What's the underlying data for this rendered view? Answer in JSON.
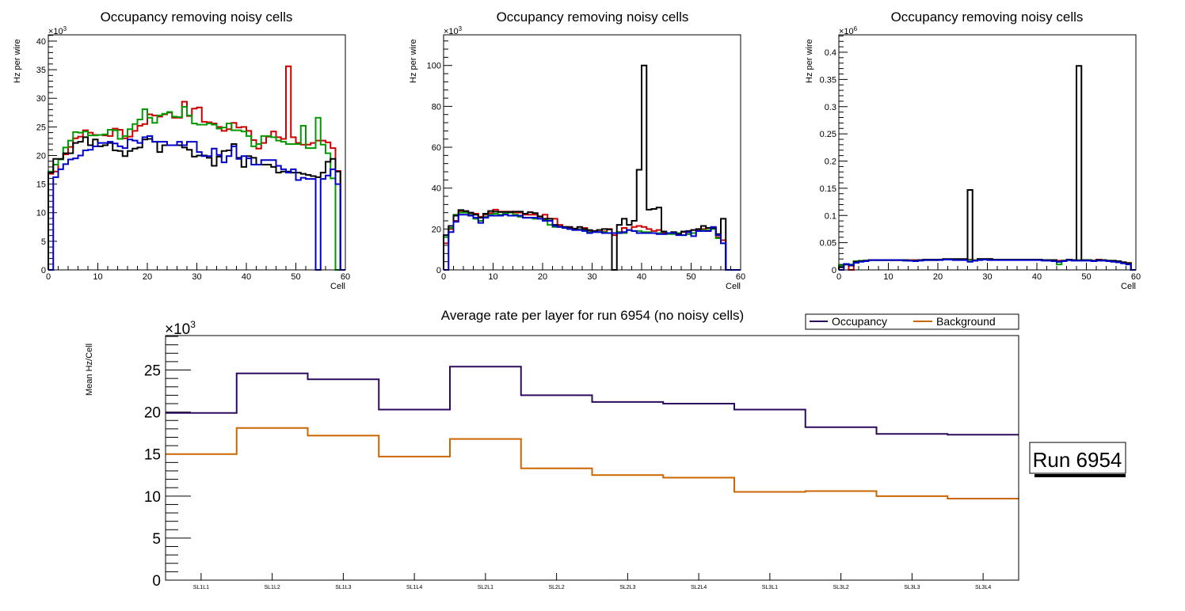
{
  "chart_data": [
    {
      "type": "line",
      "subtype": "step-histogram",
      "title": "Occupancy removing noisy cells",
      "xlabel": "Cell",
      "ylabel": "Hz per wire",
      "y_multiplier_label": "×10",
      "y_multiplier_exp": "3",
      "xlim": [
        0,
        60
      ],
      "ylim": [
        0,
        41.1
      ],
      "x_ticks": [
        0,
        10,
        20,
        30,
        40,
        50,
        60
      ],
      "y_ticks": [
        0,
        5,
        10,
        15,
        20,
        25,
        30,
        35,
        40
      ],
      "y_tick_labels": [
        "0",
        "5",
        "10",
        "15",
        "20",
        "25",
        "30",
        "35",
        "40"
      ],
      "series": [
        {
          "name": "black",
          "color": "#000000",
          "values": [
            17.0,
            19.4,
            19.4,
            20.4,
            20.4,
            22.2,
            22.4,
            23.2,
            21.8,
            22.8,
            21.6,
            21.8,
            22.2,
            20.9,
            20.8,
            19.9,
            20.8,
            21.2,
            21.4,
            22.8,
            22.9,
            22.4,
            20.6,
            21.8,
            21.8,
            21.8,
            21.8,
            21.4,
            21.0,
            19.8,
            20.0,
            20.0,
            19.6,
            18.2,
            19.8,
            20.8,
            20.9,
            22.0,
            19.6,
            18.0,
            19.9,
            19.6,
            18.4,
            18.4,
            18.4,
            18.0,
            17.0,
            17.2,
            17.2,
            17.0,
            17.0,
            16.8,
            16.6,
            16.4,
            16.2,
            17.0,
            18.9,
            19.4,
            17.2,
            0
          ]
        },
        {
          "name": "red",
          "color": "#cc0000",
          "values": [
            16.8,
            17.2,
            19.3,
            20.2,
            21.5,
            23.0,
            23.3,
            24.4,
            24.0,
            23.6,
            23.6,
            23.5,
            23.4,
            24.7,
            24.5,
            23.0,
            23.3,
            24.3,
            25.2,
            25.5,
            27.2,
            27.0,
            26.8,
            27.2,
            27.5,
            26.6,
            26.6,
            29.4,
            26.9,
            28.2,
            28.4,
            25.9,
            25.8,
            25.6,
            25.0,
            24.3,
            24.6,
            25.7,
            24.9,
            25.0,
            24.3,
            22.7,
            21.2,
            22.2,
            23.3,
            24.2,
            23.2,
            22.9,
            35.6,
            23.2,
            22.2,
            21.9,
            21.9,
            22.2,
            22.6,
            22.6,
            22.3,
            21.3,
            17.3,
            0
          ]
        },
        {
          "name": "green",
          "color": "#009900",
          "values": [
            17.2,
            18.4,
            19.3,
            21.4,
            22.6,
            24.1,
            24.0,
            24.2,
            23.5,
            23.5,
            23.6,
            23.7,
            24.5,
            24.4,
            22.9,
            23.4,
            24.6,
            25.5,
            26.3,
            28.1,
            26.6,
            25.7,
            27.0,
            27.3,
            27.6,
            26.8,
            26.7,
            28.5,
            27.0,
            25.6,
            25.4,
            25.4,
            25.6,
            25.4,
            24.7,
            24.9,
            25.6,
            24.4,
            24.4,
            24.2,
            23.4,
            21.6,
            22.0,
            23.4,
            23.4,
            23.2,
            22.6,
            22.4,
            22.0,
            22.0,
            22.0,
            25.2,
            21.3,
            21.3,
            26.6,
            21.9,
            20.4,
            16.0,
            0,
            0
          ]
        },
        {
          "name": "blue",
          "color": "#0000cc",
          "values": [
            0,
            16.2,
            17.6,
            18.5,
            19.3,
            19.5,
            20.0,
            20.9,
            21.0,
            21.6,
            22.2,
            22.2,
            22.4,
            22.1,
            21.6,
            21.3,
            22.8,
            22.6,
            22.2,
            23.2,
            23.4,
            22.4,
            22.4,
            22.4,
            21.8,
            21.8,
            22.4,
            21.8,
            22.4,
            22.4,
            20.6,
            19.9,
            19.9,
            21.2,
            20.1,
            18.8,
            19.9,
            21.6,
            19.4,
            19.9,
            19.5,
            18.4,
            18.4,
            19.2,
            19.2,
            19.2,
            18.2,
            17.6,
            17.0,
            17.6,
            15.7,
            16.1,
            15.9,
            15.9,
            0,
            15.9,
            16.5,
            17.6,
            15.0,
            0
          ]
        }
      ]
    },
    {
      "type": "line",
      "subtype": "step-histogram",
      "title": "Occupancy removing noisy cells",
      "xlabel": "Cell",
      "ylabel": "Hz per wire",
      "y_multiplier_label": "×10",
      "y_multiplier_exp": "3",
      "xlim": [
        0,
        60
      ],
      "ylim": [
        0,
        115
      ],
      "x_ticks": [
        0,
        10,
        20,
        30,
        40,
        50,
        60
      ],
      "y_ticks": [
        0,
        20,
        40,
        60,
        80,
        100
      ],
      "y_tick_labels": [
        "0",
        "20",
        "40",
        "60",
        "80",
        "100"
      ],
      "series": [
        {
          "name": "black",
          "color": "#000000",
          "values": [
            17.0,
            21.5,
            26.5,
            29.3,
            28.8,
            28.0,
            27.0,
            25.5,
            27.5,
            28.8,
            28.5,
            28.3,
            28.3,
            28.3,
            28.5,
            28.5,
            27.5,
            28.2,
            27.8,
            26.2,
            25.0,
            25.0,
            22.0,
            21.2,
            21.0,
            21.0,
            20.2,
            21.0,
            20.0,
            19.5,
            19.0,
            19.5,
            20.0,
            19.8,
            0,
            22.0,
            25.0,
            22.0,
            24.0,
            49.0,
            100.0,
            29.5,
            29.8,
            30.5,
            18.8,
            18.0,
            18.5,
            17.5,
            18.8,
            19.0,
            19.5,
            20.0,
            21.5,
            20.5,
            20.5,
            17.5,
            25.0,
            0,
            0,
            0
          ]
        },
        {
          "name": "red",
          "color": "#cc0000",
          "values": [
            13.0,
            20.0,
            24.0,
            28.8,
            28.5,
            27.8,
            27.5,
            26.0,
            27.0,
            27.8,
            29.5,
            28.5,
            28.5,
            28.5,
            28.0,
            28.0,
            27.0,
            27.0,
            27.0,
            26.0,
            27.0,
            25.0,
            25.0,
            22.0,
            21.0,
            20.5,
            20.2,
            20.0,
            20.5,
            19.0,
            19.0,
            19.5,
            18.8,
            20.0,
            17.0,
            18.5,
            20.5,
            19.5,
            21.0,
            21.5,
            21.0,
            20.0,
            19.0,
            19.5,
            18.0,
            18.0,
            18.0,
            17.5,
            18.5,
            17.5,
            19.5,
            19.5,
            20.0,
            19.0,
            20.5,
            16.0,
            14.5,
            0,
            0,
            0
          ]
        },
        {
          "name": "green",
          "color": "#009900",
          "values": [
            16.0,
            20.5,
            27.0,
            28.0,
            28.0,
            27.0,
            25.0,
            24.0,
            26.0,
            27.0,
            27.5,
            27.0,
            27.5,
            28.0,
            27.0,
            26.0,
            25.5,
            25.5,
            25.0,
            25.0,
            24.5,
            22.0,
            21.0,
            21.0,
            21.0,
            20.0,
            19.5,
            19.8,
            19.5,
            18.5,
            18.5,
            18.5,
            18.5,
            18.0,
            18.0,
            18.5,
            18.0,
            19.5,
            19.0,
            19.0,
            18.5,
            18.5,
            18.0,
            18.0,
            17.5,
            17.5,
            17.5,
            18.0,
            17.0,
            17.5,
            18.0,
            19.0,
            19.5,
            19.5,
            20.0,
            15.5,
            13.0,
            0,
            0,
            0
          ]
        },
        {
          "name": "blue",
          "color": "#0000cc",
          "values": [
            0,
            18.5,
            23.5,
            27.0,
            27.0,
            26.5,
            25.5,
            23.0,
            25.5,
            26.5,
            26.5,
            26.5,
            27.0,
            26.5,
            26.5,
            26.5,
            25.5,
            25.5,
            25.5,
            25.0,
            24.0,
            24.0,
            21.5,
            21.0,
            20.5,
            20.0,
            19.5,
            19.5,
            19.0,
            18.0,
            18.5,
            18.5,
            18.0,
            18.0,
            18.0,
            18.0,
            18.5,
            19.5,
            19.0,
            18.0,
            18.0,
            18.0,
            18.0,
            17.5,
            17.5,
            18.0,
            18.0,
            17.0,
            17.0,
            18.5,
            16.5,
            19.0,
            19.0,
            19.0,
            21.0,
            17.0,
            13.0,
            0,
            0,
            0
          ]
        }
      ]
    },
    {
      "type": "line",
      "subtype": "step-histogram",
      "title": "Occupancy removing noisy cells",
      "xlabel": "Cell",
      "ylabel": "Hz per wire",
      "y_multiplier_label": "×10",
      "y_multiplier_exp": "6",
      "xlim": [
        0,
        60
      ],
      "ylim": [
        0,
        0.432
      ],
      "x_ticks": [
        0,
        10,
        20,
        30,
        40,
        50,
        60
      ],
      "y_ticks": [
        0,
        0.05,
        0.1,
        0.15,
        0.2,
        0.25,
        0.3,
        0.35,
        0.4
      ],
      "y_tick_labels": [
        "0",
        "0.05",
        "0.1",
        "0.15",
        "0.2",
        "0.25",
        "0.3",
        "0.35",
        "0.4"
      ],
      "series": [
        {
          "name": "black",
          "color": "#000000",
          "values": [
            0.005,
            0.01,
            0.008,
            0.015,
            0.016,
            0.017,
            0.018,
            0.018,
            0.018,
            0.018,
            0.018,
            0.018,
            0.018,
            0.018,
            0.017,
            0.017,
            0.018,
            0.019,
            0.019,
            0.019,
            0.019,
            0.02,
            0.02,
            0.02,
            0.02,
            0.02,
            0.147,
            0.017,
            0.02,
            0.02,
            0.02,
            0.019,
            0.019,
            0.019,
            0.019,
            0.019,
            0.019,
            0.019,
            0.019,
            0.019,
            0.019,
            0.018,
            0.018,
            0.018,
            0.015,
            0.017,
            0.019,
            0.018,
            0.375,
            0.018,
            0.018,
            0.017,
            0.018,
            0.018,
            0.017,
            0.017,
            0.016,
            0.014,
            0.012,
            0
          ]
        },
        {
          "name": "red",
          "color": "#cc0000",
          "values": [
            0.005,
            0.01,
            0,
            0.016,
            0.016,
            0.017,
            0.018,
            0.018,
            0.018,
            0.018,
            0.018,
            0.018,
            0.018,
            0.018,
            0.018,
            0.018,
            0.018,
            0.018,
            0.018,
            0.018,
            0.019,
            0.019,
            0.019,
            0.019,
            0.019,
            0.019,
            0.019,
            0.018,
            0.019,
            0.019,
            0.02,
            0.019,
            0.019,
            0.019,
            0.019,
            0.019,
            0.019,
            0.019,
            0.019,
            0.019,
            0.019,
            0.018,
            0.018,
            0.018,
            0.017,
            0.017,
            0.018,
            0.018,
            0.018,
            0.018,
            0.018,
            0.017,
            0.019,
            0.018,
            0.017,
            0.016,
            0.015,
            0.014,
            0.013,
            0
          ]
        },
        {
          "name": "green",
          "color": "#009900",
          "values": [
            0.008,
            0.01,
            0.01,
            0.016,
            0.017,
            0.017,
            0.018,
            0.018,
            0.018,
            0.018,
            0.018,
            0.018,
            0.018,
            0.018,
            0.017,
            0.017,
            0.018,
            0.018,
            0.018,
            0.018,
            0.019,
            0.019,
            0.019,
            0.019,
            0.019,
            0.019,
            0.018,
            0.018,
            0.02,
            0.02,
            0.019,
            0.019,
            0.019,
            0.019,
            0.019,
            0.019,
            0.019,
            0.019,
            0.019,
            0.019,
            0.019,
            0.018,
            0.018,
            0.017,
            0.01,
            0.017,
            0.018,
            0.018,
            0.018,
            0.018,
            0.018,
            0.017,
            0.018,
            0.018,
            0.017,
            0.016,
            0.014,
            0.013,
            0.012,
            0
          ]
        },
        {
          "name": "blue",
          "color": "#0000cc",
          "values": [
            0,
            0.011,
            0.009,
            0.013,
            0.015,
            0.016,
            0.018,
            0.018,
            0.018,
            0.018,
            0.018,
            0.018,
            0.018,
            0.017,
            0.017,
            0.016,
            0.017,
            0.018,
            0.018,
            0.018,
            0.018,
            0.019,
            0.019,
            0.018,
            0.018,
            0.018,
            0.015,
            0.017,
            0.018,
            0.019,
            0.018,
            0.018,
            0.018,
            0.018,
            0.018,
            0.018,
            0.018,
            0.018,
            0.018,
            0.018,
            0.018,
            0.017,
            0.017,
            0.016,
            0.015,
            0.016,
            0.018,
            0.017,
            0.017,
            0.017,
            0.017,
            0.016,
            0.017,
            0.017,
            0.016,
            0.015,
            0.014,
            0.012,
            0.01,
            0
          ]
        }
      ]
    },
    {
      "type": "line",
      "subtype": "step-histogram",
      "title": "Average rate per layer for run 6954 (no noisy cells)",
      "xlabel": "",
      "ylabel": "Mean Hz/Cell",
      "y_multiplier_label": "×10",
      "y_multiplier_exp": "3",
      "ylim": [
        0,
        29.1
      ],
      "y_ticks": [
        0,
        5,
        10,
        15,
        20,
        25
      ],
      "y_tick_labels": [
        "0",
        "5",
        "10",
        "15",
        "20",
        "25"
      ],
      "categories": [
        "SL1L1",
        "SL1L2",
        "SL1L3",
        "SL1L4",
        "SL2L1",
        "SL2L2",
        "SL2L3",
        "SL2L4",
        "SL3L1",
        "SL3L2",
        "SL3L3",
        "SL3L4"
      ],
      "legend_position": "top-right",
      "series": [
        {
          "name": "Occupancy",
          "color": "#2e0a5e",
          "values": [
            19.9,
            24.6,
            23.9,
            20.3,
            25.4,
            22.0,
            21.2,
            21.0,
            20.3,
            18.2,
            17.4,
            17.3
          ]
        },
        {
          "name": "Background",
          "color": "#cc6600",
          "values": [
            15.0,
            18.1,
            17.2,
            14.7,
            16.8,
            13.3,
            12.5,
            12.2,
            10.5,
            10.6,
            10.0,
            9.7
          ]
        }
      ]
    }
  ],
  "run_label": "Run 6954"
}
